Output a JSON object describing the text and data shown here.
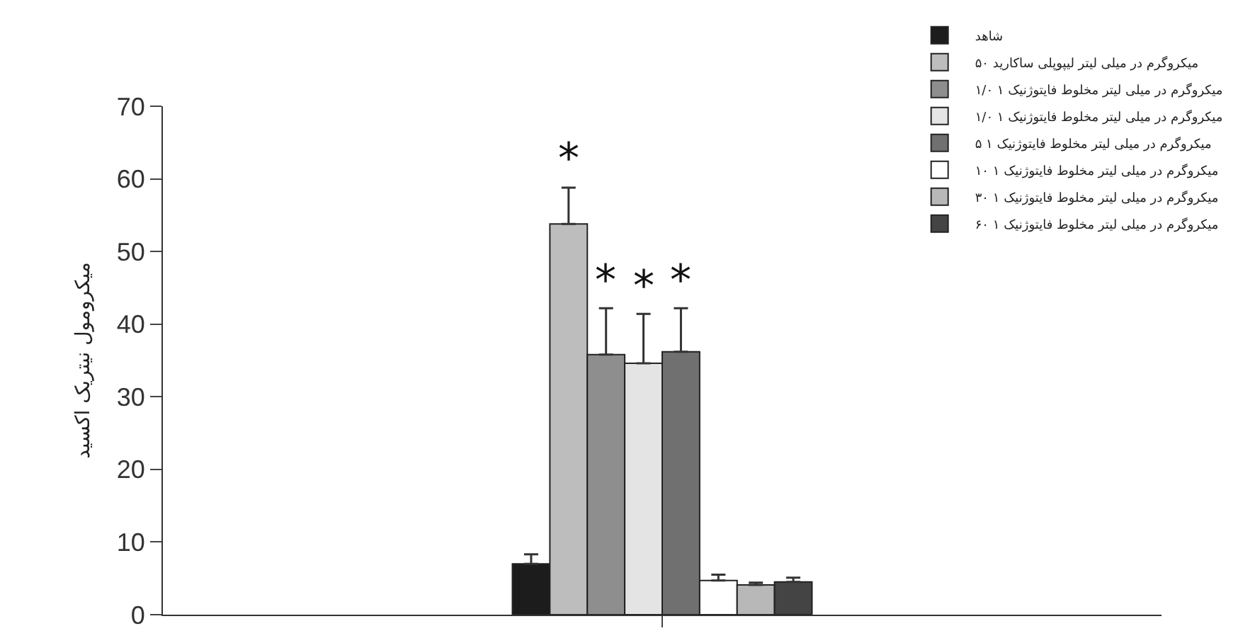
{
  "chart_data": {
    "type": "bar",
    "ylabel": "میکرومول نیتریک اکسید",
    "categories": [
      null
    ],
    "ylim": [
      0,
      70
    ],
    "yticks": [
      0,
      10,
      20,
      30,
      40,
      50,
      60,
      70
    ],
    "legend": "top right",
    "tick_labels": "y",
    "series": [
      {
        "name": "شاهد",
        "color": "#1c1c1c",
        "values": [
          7.0
        ],
        "errors": [
          [
            7.0,
            8.3
          ]
        ]
      },
      {
        "name": "۵۰ میکروگرم در میلی لیتر لیپوپلی ساکارید",
        "color": "#bdbdbd",
        "values": [
          53.8
        ],
        "errors": [
          [
            53.8,
            58.8
          ]
        ],
        "value_labels": [
          "*"
        ]
      },
      {
        "name": "۱/۰ میکروگرم در میلی لیتر مخلوط فایتوژنیک ۱",
        "color": "#8e8e8e",
        "values": [
          35.8
        ],
        "errors": [
          [
            35.8,
            42.2
          ]
        ],
        "value_labels": [
          "*"
        ]
      },
      {
        "name": "۱/۰ میکروگرم در میلی لیتر مخلوط فایتوژنیک ۱",
        "color": "#e4e4e4",
        "values": [
          34.6
        ],
        "errors": [
          [
            34.6,
            41.4
          ]
        ],
        "value_labels": [
          "*"
        ]
      },
      {
        "name": "۵ میکروگرم در میلی لیتر مخلوط فایتوژنیک ۱",
        "color": "#707070",
        "values": [
          36.2
        ],
        "errors": [
          [
            36.2,
            42.2
          ]
        ],
        "value_labels": [
          "*"
        ]
      },
      {
        "name": "۱۰ میکروگرم در میلی لیتر مخلوط فایتوژنیک ۱",
        "color": "#ffffff",
        "values": [
          4.7
        ],
        "errors": [
          [
            4.7,
            5.5
          ]
        ]
      },
      {
        "name": "۳۰ میکروگرم در میلی لیتر مخلوط فایتوژنیک ۱",
        "color": "#b8b8b8",
        "values": [
          4.1
        ],
        "errors": [
          [
            4.1,
            4.4
          ]
        ]
      },
      {
        "name": "۶۰ میکروگرم در میلی لیتر مخلوط فایتوژنیک ۱",
        "color": "#444444",
        "values": [
          4.5
        ],
        "errors": [
          [
            4.5,
            5.1
          ]
        ]
      }
    ]
  }
}
